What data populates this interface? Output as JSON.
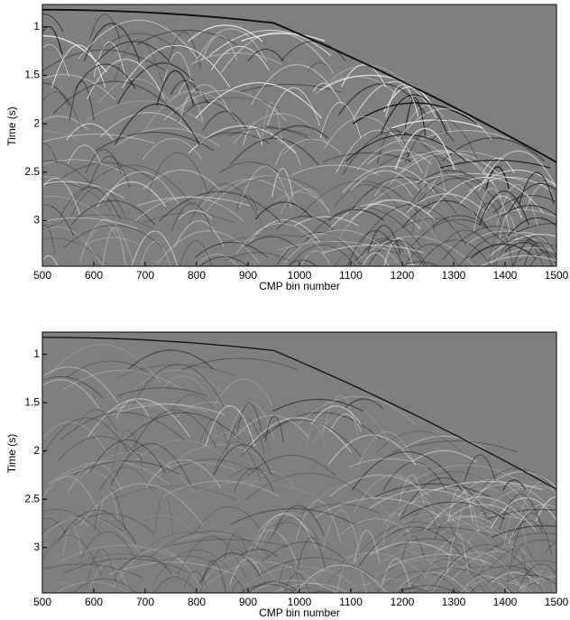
{
  "chart_data": [
    {
      "type": "image",
      "xlabel": "CMP bin number",
      "ylabel": "Time (s)",
      "xlim": [
        500,
        1500
      ],
      "xticks": [
        500,
        600,
        700,
        800,
        900,
        1000,
        1100,
        1200,
        1300,
        1400,
        1500
      ],
      "ylim": [
        0.77,
        3.47
      ],
      "yticks": [
        1,
        1.5,
        2,
        2.5,
        3
      ],
      "yinvert": true
    },
    {
      "type": "image",
      "xlabel": "CMP bin number",
      "ylabel": "Time (s)",
      "xlim": [
        500,
        1500
      ],
      "xticks": [
        500,
        600,
        700,
        800,
        900,
        1000,
        1100,
        1200,
        1300,
        1400,
        1500
      ],
      "ylim": [
        0.77,
        3.47
      ],
      "yticks": [
        1,
        1.5,
        2,
        2.5,
        3
      ],
      "yinvert": true
    }
  ]
}
